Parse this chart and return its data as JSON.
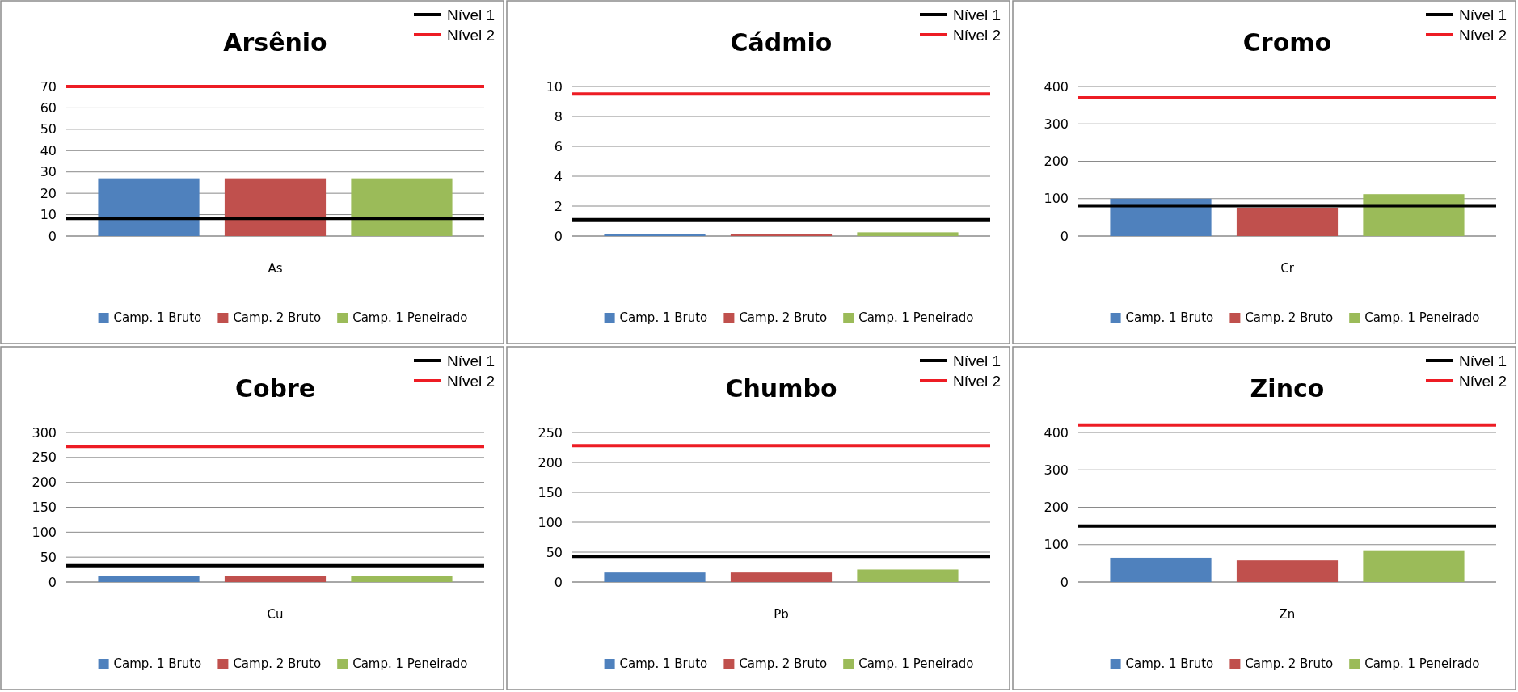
{
  "chart_data": [
    {
      "type": "bar",
      "title": "Arsênio",
      "categories": [
        "As"
      ],
      "series": [
        {
          "name": "Camp. 1 Bruto",
          "color": "#4f81bd",
          "values": [
            27
          ]
        },
        {
          "name": "Camp. 2 Bruto",
          "color": "#c0504d",
          "values": [
            27
          ]
        },
        {
          "name": "Camp. 1 Peneirado",
          "color": "#9bbb59",
          "values": [
            27
          ]
        }
      ],
      "ylim": [
        0,
        70
      ],
      "yticks": [
        0,
        10,
        20,
        30,
        40,
        50,
        60,
        70
      ],
      "grid": "y",
      "legend": "bottom",
      "ref_lines": [
        {
          "axis": "y",
          "value": 8.2,
          "label": "Nível 1",
          "color": "#000000"
        },
        {
          "axis": "y",
          "value": 70,
          "label": "Nível 2",
          "color": "#ed1c24"
        }
      ]
    },
    {
      "type": "bar",
      "title": "Cádmio",
      "categories": [
        null
      ],
      "series": [
        {
          "name": "Camp. 1 Bruto",
          "color": "#4f81bd",
          "values": [
            0.15
          ]
        },
        {
          "name": "Camp. 2 Bruto",
          "color": "#c0504d",
          "values": [
            0.15
          ]
        },
        {
          "name": "Camp. 1 Peneirado",
          "color": "#9bbb59",
          "values": [
            0.25
          ]
        }
      ],
      "ylim": [
        0,
        10
      ],
      "yticks": [
        0,
        2,
        4,
        6,
        8,
        10
      ],
      "grid": "y",
      "legend": "bottom",
      "ref_lines": [
        {
          "axis": "y",
          "value": 1.1,
          "label": "Nível 1",
          "color": "#000000"
        },
        {
          "axis": "y",
          "value": 9.5,
          "label": "Nível 2",
          "color": "#ed1c24"
        }
      ]
    },
    {
      "type": "bar",
      "title": "Cromo",
      "categories": [
        "Cr"
      ],
      "series": [
        {
          "name": "Camp. 1 Bruto",
          "color": "#4f81bd",
          "values": [
            100
          ]
        },
        {
          "name": "Camp. 2 Bruto",
          "color": "#c0504d",
          "values": [
            76
          ]
        },
        {
          "name": "Camp. 1 Peneirado",
          "color": "#9bbb59",
          "values": [
            112
          ]
        }
      ],
      "ylim": [
        0,
        400
      ],
      "yticks": [
        0,
        100,
        200,
        300,
        400
      ],
      "grid": "y",
      "legend": "bottom",
      "ref_lines": [
        {
          "axis": "y",
          "value": 81,
          "label": "Nível 1",
          "color": "#000000"
        },
        {
          "axis": "y",
          "value": 370,
          "label": "Nível 2",
          "color": "#ed1c24"
        }
      ]
    },
    {
      "type": "bar",
      "title": "Cobre",
      "categories": [
        "Cu"
      ],
      "series": [
        {
          "name": "Camp. 1 Bruto",
          "color": "#4f81bd",
          "values": [
            12
          ]
        },
        {
          "name": "Camp. 2 Bruto",
          "color": "#c0504d",
          "values": [
            12
          ]
        },
        {
          "name": "Camp. 1 Peneirado",
          "color": "#9bbb59",
          "values": [
            12
          ]
        }
      ],
      "ylim": [
        0,
        300
      ],
      "yticks": [
        0,
        50,
        100,
        150,
        200,
        250,
        300
      ],
      "grid": "y",
      "legend": "bottom",
      "ref_lines": [
        {
          "axis": "y",
          "value": 33,
          "label": "Nível 1",
          "color": "#000000"
        },
        {
          "axis": "y",
          "value": 272,
          "label": "Nível 2",
          "color": "#ed1c24"
        }
      ]
    },
    {
      "type": "bar",
      "title": "Chumbo",
      "categories": [
        "Pb"
      ],
      "series": [
        {
          "name": "Camp. 1 Bruto",
          "color": "#4f81bd",
          "values": [
            16
          ]
        },
        {
          "name": "Camp. 2 Bruto",
          "color": "#c0504d",
          "values": [
            16
          ]
        },
        {
          "name": "Camp. 1 Peneirado",
          "color": "#9bbb59",
          "values": [
            21
          ]
        }
      ],
      "ylim": [
        0,
        250
      ],
      "yticks": [
        0,
        50,
        100,
        150,
        200,
        250
      ],
      "grid": "y",
      "legend": "bottom",
      "ref_lines": [
        {
          "axis": "y",
          "value": 43,
          "label": "Nível 1",
          "color": "#000000"
        },
        {
          "axis": "y",
          "value": 228,
          "label": "Nível 2",
          "color": "#ed1c24"
        }
      ]
    },
    {
      "type": "bar",
      "title": "Zinco",
      "categories": [
        "Zn"
      ],
      "series": [
        {
          "name": "Camp. 1 Bruto",
          "color": "#4f81bd",
          "values": [
            65
          ]
        },
        {
          "name": "Camp. 2 Bruto",
          "color": "#c0504d",
          "values": [
            58
          ]
        },
        {
          "name": "Camp. 1 Peneirado",
          "color": "#9bbb59",
          "values": [
            85
          ]
        }
      ],
      "ylim": [
        0,
        400
      ],
      "yticks": [
        0,
        100,
        200,
        300,
        400
      ],
      "grid": "y",
      "legend": "bottom",
      "ref_lines": [
        {
          "axis": "y",
          "value": 150,
          "label": "Nível 1",
          "color": "#000000"
        },
        {
          "axis": "y",
          "value": 420,
          "label": "Nível 2",
          "color": "#ed1c24"
        }
      ]
    }
  ]
}
